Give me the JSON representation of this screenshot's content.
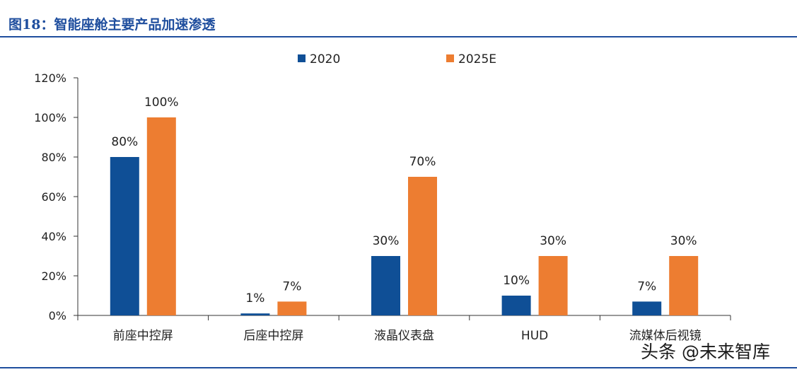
{
  "header": {
    "title": "图18：智能座舱主要产品加速渗透"
  },
  "watermark": "头条 @未来智库",
  "colors": {
    "series_2020": "#0f4f96",
    "series_2025E": "#ed7d31",
    "accent": "#1f4e9e",
    "axis": "#333333"
  },
  "chart_data": {
    "type": "bar",
    "title": "",
    "xlabel": "",
    "ylabel": "",
    "categories": [
      "前座中控屏",
      "后座中控屏",
      "液晶仪表盘",
      "HUD",
      "流媒体后视镜"
    ],
    "series": [
      {
        "name": "2020",
        "values": [
          80,
          1,
          30,
          10,
          7
        ],
        "labels": [
          "80%",
          "1%",
          "30%",
          "10%",
          "7%"
        ]
      },
      {
        "name": "2025E",
        "values": [
          100,
          7,
          70,
          30,
          30
        ],
        "labels": [
          "100%",
          "7%",
          "70%",
          "30%",
          "30%"
        ]
      }
    ],
    "ylim": [
      0,
      120
    ],
    "yticks": [
      0,
      20,
      40,
      60,
      80,
      100,
      120
    ],
    "ytick_labels": [
      "0%",
      "20%",
      "40%",
      "60%",
      "80%",
      "100%",
      "120%"
    ],
    "grid": false,
    "legend_position": "top-center"
  }
}
